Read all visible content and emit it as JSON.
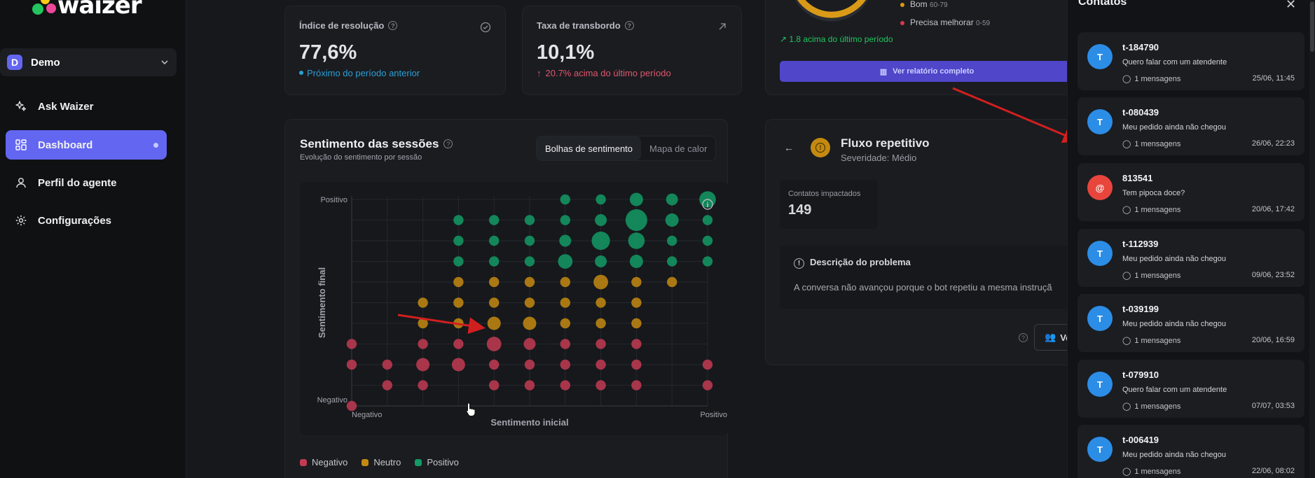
{
  "app": {
    "logo_text": "waizer"
  },
  "sidebar": {
    "workspace": {
      "initial": "D",
      "name": "Demo"
    },
    "items": [
      {
        "label": "Ask Waizer",
        "icon": "sparkle-icon"
      },
      {
        "label": "Dashboard",
        "icon": "grid-icon"
      },
      {
        "label": "Perfil do agente",
        "icon": "user-icon"
      },
      {
        "label": "Configurações",
        "icon": "gear-icon"
      }
    ]
  },
  "kpis": [
    {
      "title": "Índice de resolução",
      "value": "77,6%",
      "sub": "Próximo do período anterior",
      "sub_color": "#2b9fd6",
      "icon": "check-circle-icon"
    },
    {
      "title": "Taxa de transbordo",
      "value": "10,1%",
      "sub": "20.7% acima do último período",
      "sub_color": "#e0566c",
      "icon": "arrow-up-right-icon"
    }
  ],
  "score": {
    "legend": [
      {
        "label": "Bom",
        "range": "60-79",
        "color": "#d99a18"
      },
      {
        "label": "Precisa melhorar",
        "range": "0-59",
        "color": "#d43a4e"
      }
    ],
    "trend": "1.8 acima do último período",
    "report_button": "Ver relatório completo"
  },
  "sentiment": {
    "title": "Sentimento das sessões",
    "subtitle": "Evolução do sentimento por sessão",
    "tabs": [
      "Bolhas de sentimento",
      "Mapa de calor"
    ],
    "active_tab": 0,
    "legend": [
      {
        "label": "Negativo",
        "color": "#c23b52"
      },
      {
        "label": "Neutro",
        "color": "#c48a10"
      },
      {
        "label": "Positivo",
        "color": "#139a65"
      }
    ]
  },
  "chart_data": {
    "type": "scatter",
    "xlabel": "Sentimento inicial",
    "ylabel": "Sentimento final",
    "x_tick_labels": [
      "Negativo",
      "Positivo"
    ],
    "y_tick_labels": [
      "Positivo",
      "Negativo"
    ],
    "xlim": [
      0,
      10
    ],
    "ylim": [
      0,
      10
    ],
    "grid": true,
    "legend_position": "bottom-left",
    "series": [
      {
        "name": "Negativo",
        "color": "#c23b52",
        "points": [
          {
            "x": 0,
            "y": 0,
            "s": 1
          },
          {
            "x": 0,
            "y": 3,
            "s": 1
          },
          {
            "x": 0,
            "y": 2,
            "s": 1
          },
          {
            "x": 1,
            "y": 2,
            "s": 1
          },
          {
            "x": 2,
            "y": 2,
            "s": 3
          },
          {
            "x": 3,
            "y": 2,
            "s": 3
          },
          {
            "x": 1,
            "y": 1,
            "s": 1
          },
          {
            "x": 2,
            "y": 1,
            "s": 1
          },
          {
            "x": 2,
            "y": 3,
            "s": 1
          },
          {
            "x": 3,
            "y": 3,
            "s": 1
          },
          {
            "x": 4,
            "y": 3,
            "s": 4
          },
          {
            "x": 4,
            "y": 2,
            "s": 1
          },
          {
            "x": 4,
            "y": 1,
            "s": 1
          },
          {
            "x": 5,
            "y": 3,
            "s": 2
          },
          {
            "x": 5,
            "y": 2,
            "s": 1
          },
          {
            "x": 5,
            "y": 1,
            "s": 1
          },
          {
            "x": 6,
            "y": 3,
            "s": 1
          },
          {
            "x": 6,
            "y": 2,
            "s": 1
          },
          {
            "x": 6,
            "y": 1,
            "s": 1
          },
          {
            "x": 7,
            "y": 3,
            "s": 1
          },
          {
            "x": 7,
            "y": 2,
            "s": 1
          },
          {
            "x": 7,
            "y": 1,
            "s": 1
          },
          {
            "x": 8,
            "y": 3,
            "s": 1
          },
          {
            "x": 8,
            "y": 2,
            "s": 1
          },
          {
            "x": 8,
            "y": 1,
            "s": 1
          },
          {
            "x": 10,
            "y": 2,
            "s": 1
          },
          {
            "x": 10,
            "y": 1,
            "s": 1
          }
        ]
      },
      {
        "name": "Neutro",
        "color": "#c48a10",
        "points": [
          {
            "x": 2,
            "y": 5,
            "s": 1
          },
          {
            "x": 2,
            "y": 4,
            "s": 1
          },
          {
            "x": 3,
            "y": 6,
            "s": 1
          },
          {
            "x": 3,
            "y": 5,
            "s": 1
          },
          {
            "x": 3,
            "y": 4,
            "s": 1
          },
          {
            "x": 4,
            "y": 6,
            "s": 1
          },
          {
            "x": 4,
            "y": 5,
            "s": 1
          },
          {
            "x": 4,
            "y": 4,
            "s": 3
          },
          {
            "x": 5,
            "y": 6,
            "s": 1
          },
          {
            "x": 5,
            "y": 5,
            "s": 1
          },
          {
            "x": 5,
            "y": 4,
            "s": 3
          },
          {
            "x": 6,
            "y": 6,
            "s": 1
          },
          {
            "x": 6,
            "y": 5,
            "s": 1
          },
          {
            "x": 6,
            "y": 4,
            "s": 1
          },
          {
            "x": 7,
            "y": 6,
            "s": 4
          },
          {
            "x": 7,
            "y": 5,
            "s": 1
          },
          {
            "x": 7,
            "y": 4,
            "s": 1
          },
          {
            "x": 8,
            "y": 6,
            "s": 1
          },
          {
            "x": 8,
            "y": 5,
            "s": 1
          },
          {
            "x": 8,
            "y": 4,
            "s": 1
          },
          {
            "x": 9,
            "y": 6,
            "s": 1
          }
        ]
      },
      {
        "name": "Positivo",
        "color": "#139a65",
        "points": [
          {
            "x": 3,
            "y": 9,
            "s": 1
          },
          {
            "x": 3,
            "y": 8,
            "s": 1
          },
          {
            "x": 3,
            "y": 7,
            "s": 1
          },
          {
            "x": 4,
            "y": 9,
            "s": 1
          },
          {
            "x": 4,
            "y": 8,
            "s": 1
          },
          {
            "x": 4,
            "y": 7,
            "s": 1
          },
          {
            "x": 5,
            "y": 9,
            "s": 1
          },
          {
            "x": 5,
            "y": 8,
            "s": 1
          },
          {
            "x": 5,
            "y": 7,
            "s": 1
          },
          {
            "x": 6,
            "y": 10,
            "s": 1
          },
          {
            "x": 6,
            "y": 9,
            "s": 1
          },
          {
            "x": 6,
            "y": 8,
            "s": 2
          },
          {
            "x": 6,
            "y": 7,
            "s": 4
          },
          {
            "x": 7,
            "y": 10,
            "s": 1
          },
          {
            "x": 7,
            "y": 9,
            "s": 2
          },
          {
            "x": 7,
            "y": 8,
            "s": 8
          },
          {
            "x": 7,
            "y": 7,
            "s": 2
          },
          {
            "x": 8,
            "y": 10,
            "s": 3
          },
          {
            "x": 8,
            "y": 9,
            "s": 13
          },
          {
            "x": 8,
            "y": 8,
            "s": 6
          },
          {
            "x": 8,
            "y": 7,
            "s": 3
          },
          {
            "x": 9,
            "y": 10,
            "s": 2
          },
          {
            "x": 9,
            "y": 9,
            "s": 3
          },
          {
            "x": 9,
            "y": 8,
            "s": 1
          },
          {
            "x": 9,
            "y": 7,
            "s": 1
          },
          {
            "x": 10,
            "y": 10,
            "s": 6
          },
          {
            "x": 10,
            "y": 9,
            "s": 1
          },
          {
            "x": 10,
            "y": 8,
            "s": 1
          },
          {
            "x": 10,
            "y": 7,
            "s": 1
          }
        ]
      }
    ]
  },
  "issue": {
    "title": "Fluxo repetitivo",
    "severity": "Severidade: Médio",
    "impacted_label": "Contatos impactados",
    "impacted_value": "149",
    "desc_title": "Descrição do problema",
    "desc_text": "A conversa não avançou porque o bot repetiu a mesma instruçã",
    "button_label": "Ve"
  },
  "contacts": {
    "title": "Contatos",
    "items": [
      {
        "initial": "T",
        "name": "t-184790",
        "message": "Quero falar com um atendente",
        "count": "1 mensagens",
        "date": "25/06, 11:45",
        "color": "#2c8de6"
      },
      {
        "initial": "T",
        "name": "t-080439",
        "message": "Meu pedido ainda não chegou",
        "count": "1 mensagens",
        "date": "26/06, 22:23",
        "color": "#2c8de6"
      },
      {
        "initial": "@",
        "name": "813541",
        "message": "Tem pipoca doce?",
        "count": "1 mensagens",
        "date": "20/06, 17:42",
        "color": "#e8453c"
      },
      {
        "initial": "T",
        "name": "t-112939",
        "message": "Meu pedido ainda não chegou",
        "count": "1 mensagens",
        "date": "09/06, 23:52",
        "color": "#2c8de6"
      },
      {
        "initial": "T",
        "name": "t-039199",
        "message": "Meu pedido ainda não chegou",
        "count": "1 mensagens",
        "date": "20/06, 16:59",
        "color": "#2c8de6"
      },
      {
        "initial": "T",
        "name": "t-079910",
        "message": "Quero falar com um atendente",
        "count": "1 mensagens",
        "date": "07/07, 03:53",
        "color": "#2c8de6"
      },
      {
        "initial": "T",
        "name": "t-006419",
        "message": "Meu pedido ainda não chegou",
        "count": "1 mensagens",
        "date": "22/06, 08:02",
        "color": "#2c8de6"
      }
    ]
  }
}
